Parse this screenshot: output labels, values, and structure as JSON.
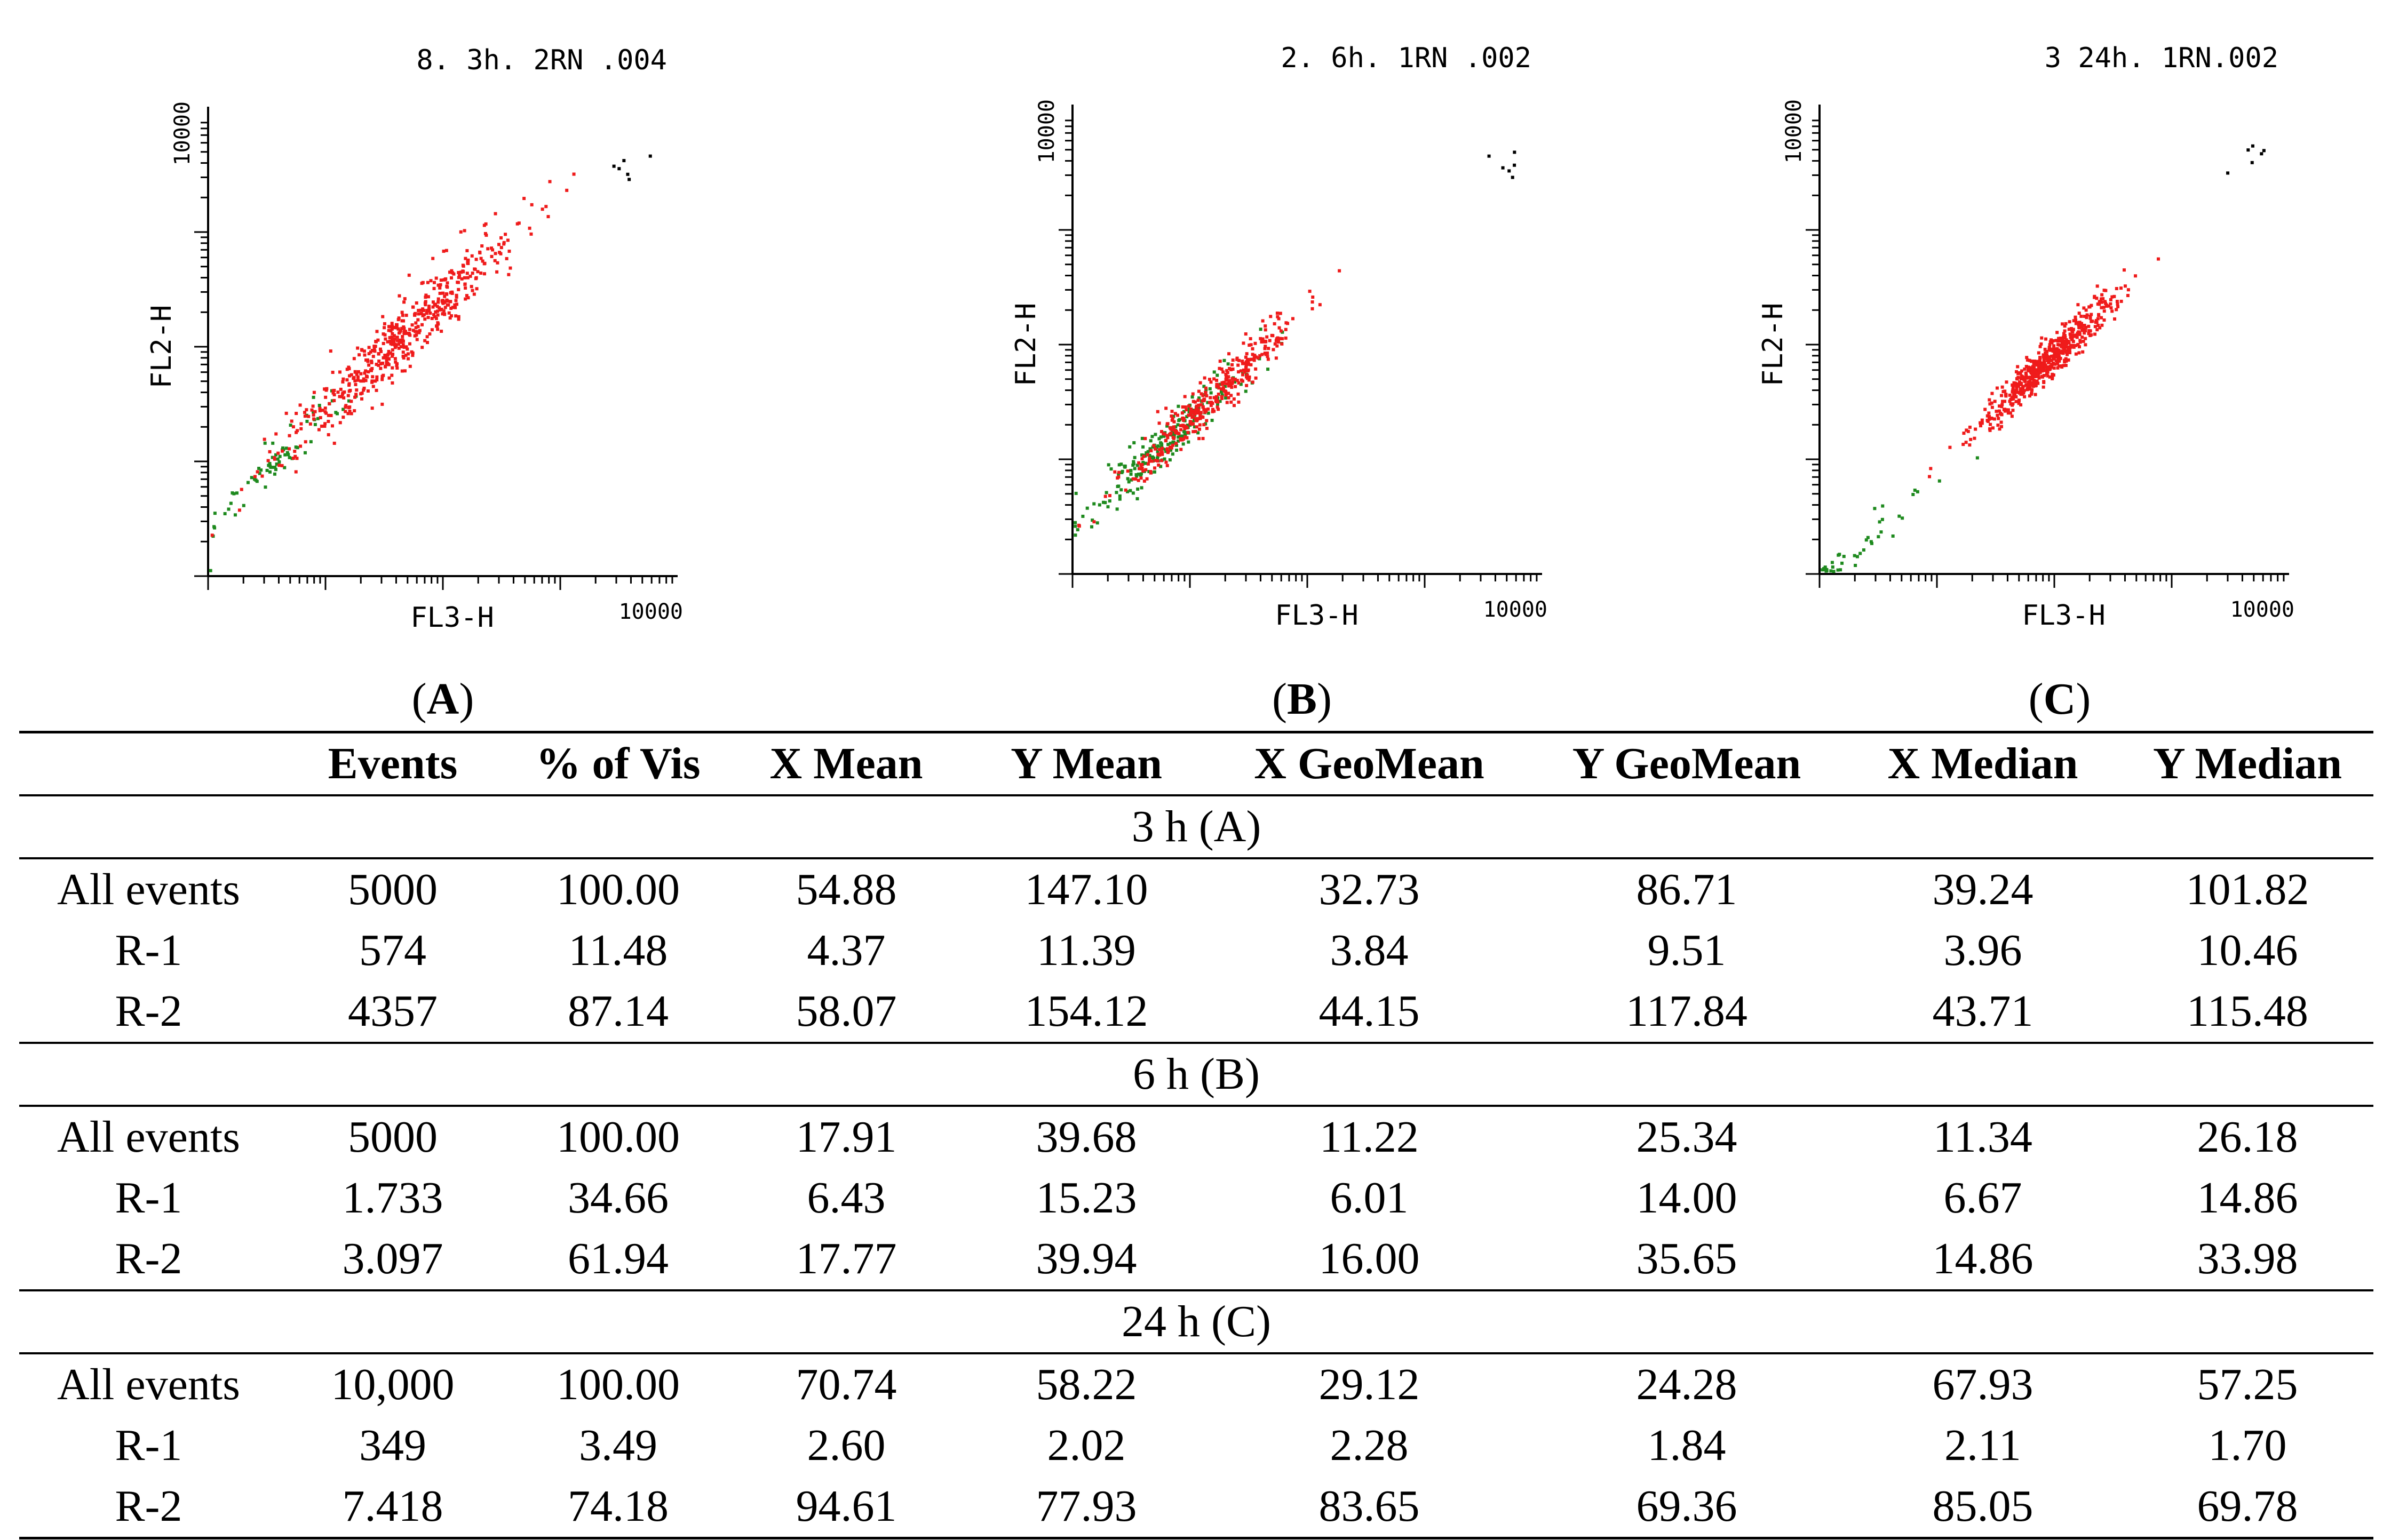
{
  "colors": {
    "gated_high": "#ef1b1b",
    "gated_low": "#1e8a1e",
    "ungated": "#000000"
  },
  "panels": [
    {
      "id": "A",
      "title": "8. 3h. 2RN .004",
      "x_label": "FL3-H",
      "y_label": "FL2-H",
      "x_max_label": "10000",
      "y_max_label": "10000",
      "label": "A"
    },
    {
      "id": "B",
      "title": "2. 6h. 1RN .002",
      "x_label": "FL3-H",
      "y_label": "FL2-H",
      "x_max_label": "10000",
      "y_max_label": "10000",
      "label": "B"
    },
    {
      "id": "C",
      "title": "3 24h. 1RN.002",
      "x_label": "FL3-H",
      "y_label": "FL2-H",
      "x_max_label": "10000",
      "y_max_label": "10000",
      "label": "C"
    }
  ],
  "chart_data": [
    {
      "type": "scatter",
      "title": "8. 3h. 2RN .004",
      "xlabel": "FL3-H",
      "ylabel": "FL2-H",
      "xlim": [
        1,
        10000
      ],
      "ylim": [
        1,
        10000
      ],
      "xscale": "log",
      "yscale": "log",
      "series": [
        {
          "name": "R-1",
          "color": "#1e8a1e",
          "count": 574,
          "center": [
            3.96,
            10.46
          ],
          "spread": 0.18
        },
        {
          "name": "R-2",
          "color": "#ef1b1b",
          "count": 4357,
          "center": [
            43.71,
            115.48
          ],
          "spread": 0.3
        }
      ]
    },
    {
      "type": "scatter",
      "title": "2. 6h. 1RN .002",
      "xlabel": "FL3-H",
      "ylabel": "FL2-H",
      "xlim": [
        1,
        10000
      ],
      "ylim": [
        1,
        10000
      ],
      "xscale": "log",
      "yscale": "log",
      "series": [
        {
          "name": "R-1",
          "color": "#1e8a1e",
          "count": 1733,
          "center": [
            6.67,
            14.86
          ],
          "spread": 0.22
        },
        {
          "name": "R-2",
          "color": "#ef1b1b",
          "count": 3097,
          "center": [
            14.86,
            33.98
          ],
          "spread": 0.22
        }
      ]
    },
    {
      "type": "scatter",
      "title": "3 24h. 1RN.002",
      "xlabel": "FL3-H",
      "ylabel": "FL2-H",
      "xlim": [
        1,
        10000
      ],
      "ylim": [
        1,
        10000
      ],
      "xscale": "log",
      "yscale": "log",
      "series": [
        {
          "name": "R-1",
          "color": "#1e8a1e",
          "count": 349,
          "center": [
            2.11,
            1.7
          ],
          "spread": 0.22
        },
        {
          "name": "R-2",
          "color": "#ef1b1b",
          "count": 7418,
          "center": [
            85.05,
            69.78
          ],
          "spread": 0.18
        }
      ]
    }
  ],
  "table": {
    "headers": [
      "",
      "Events",
      "% of Vis",
      "X Mean",
      "Y Mean",
      "X GeoMean",
      "Y GeoMean",
      "X Median",
      "Y Median"
    ],
    "groups": [
      {
        "title": "3 h (A)",
        "rows": [
          [
            "All events",
            "5000",
            "100.00",
            "54.88",
            "147.10",
            "32.73",
            "86.71",
            "39.24",
            "101.82"
          ],
          [
            "R-1",
            "574",
            "11.48",
            "4.37",
            "11.39",
            "3.84",
            "9.51",
            "3.96",
            "10.46"
          ],
          [
            "R-2",
            "4357",
            "87.14",
            "58.07",
            "154.12",
            "44.15",
            "117.84",
            "43.71",
            "115.48"
          ]
        ]
      },
      {
        "title": "6 h (B)",
        "rows": [
          [
            "All events",
            "5000",
            "100.00",
            "17.91",
            "39.68",
            "11.22",
            "25.34",
            "11.34",
            "26.18"
          ],
          [
            "R-1",
            "1.733",
            "34.66",
            "6.43",
            "15.23",
            "6.01",
            "14.00",
            "6.67",
            "14.86"
          ],
          [
            "R-2",
            "3.097",
            "61.94",
            "17.77",
            "39.94",
            "16.00",
            "35.65",
            "14.86",
            "33.98"
          ]
        ]
      },
      {
        "title": "24 h (C)",
        "rows": [
          [
            "All events",
            "10,000",
            "100.00",
            "70.74",
            "58.22",
            "29.12",
            "24.28",
            "67.93",
            "57.25"
          ],
          [
            "R-1",
            "349",
            "3.49",
            "2.60",
            "2.02",
            "2.28",
            "1.84",
            "2.11",
            "1.70"
          ],
          [
            "R-2",
            "7.418",
            "74.18",
            "94.61",
            "77.93",
            "83.65",
            "69.36",
            "85.05",
            "69.78"
          ]
        ]
      }
    ]
  }
}
